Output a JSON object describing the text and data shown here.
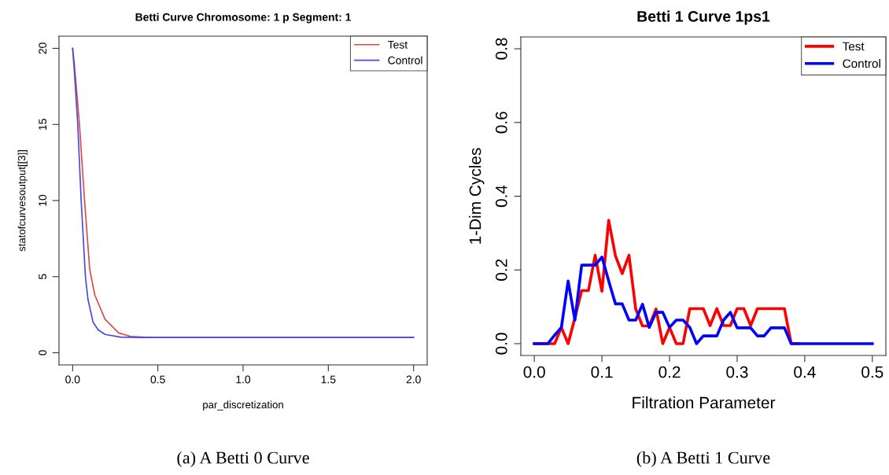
{
  "chart_data": [
    {
      "type": "line",
      "title": "Betti Curve Chromosome: 1 p Segment: 1",
      "xlabel": "par_discretization",
      "ylabel": "statofcurvesoutput[[3]]",
      "xlim": [
        -0.08,
        2.08
      ],
      "xticks": [
        {
          "value": 0,
          "label": "0.0"
        },
        0.5,
        {
          "value": 1,
          "label": "1.0"
        },
        1.5,
        {
          "value": 2,
          "label": "2.0"
        }
      ],
      "ylim": [
        -0.8,
        20.8
      ],
      "yticks": [
        0,
        5,
        10,
        15,
        20
      ],
      "grid": false,
      "legend": "top right",
      "annotations": [
        "(a) A Betti 0 Curve"
      ],
      "series": [
        {
          "name": "Test",
          "color": "#e04848",
          "x": [
            0,
            0.01,
            0.04,
            0.07,
            0.1,
            0.13,
            0.19,
            0.27,
            0.34,
            0.45,
            2
          ],
          "values": [
            20,
            19,
            15,
            10,
            5.5,
            3.8,
            2.2,
            1.3,
            1.07,
            1,
            1
          ]
        },
        {
          "name": "Control",
          "color": "#4848e0",
          "x": [
            0,
            0.01,
            0.03,
            0.05,
            0.075,
            0.09,
            0.12,
            0.15,
            0.19,
            0.28,
            0.4,
            2
          ],
          "values": [
            20,
            18.5,
            15,
            10,
            5,
            3.5,
            2,
            1.5,
            1.2,
            1.03,
            1,
            1
          ]
        }
      ]
    },
    {
      "type": "line",
      "title": "Betti 1 Curve 1ps1",
      "xlabel": "Filtration Parameter",
      "ylabel": "1-Dim Cycles",
      "xlim": [
        -0.02,
        0.52
      ],
      "xticks": [
        {
          "value": 0,
          "label": "0.0"
        },
        0.1,
        0.2,
        0.3,
        0.4,
        0.5
      ],
      "ylim": [
        -0.032,
        0.832
      ],
      "yticks": [
        {
          "value": 0,
          "label": "0.0"
        },
        0.2,
        0.4,
        0.6,
        0.8
      ],
      "grid": false,
      "legend": "top right",
      "annotations": [
        "(b) A Betti 1 Curve"
      ],
      "x": [
        0,
        0.01,
        0.02,
        0.03,
        0.04,
        0.05,
        0.06,
        0.07,
        0.08,
        0.09,
        0.1,
        0.11,
        0.12,
        0.13,
        0.14,
        0.15,
        0.16,
        0.17,
        0.18,
        0.19,
        0.2,
        0.21,
        0.22,
        0.23,
        0.24,
        0.25,
        0.26,
        0.27,
        0.28,
        0.29,
        0.3,
        0.31,
        0.32,
        0.33,
        0.34,
        0.35,
        0.36,
        0.37,
        0.38,
        0.39,
        0.4,
        0.41,
        0.42,
        0.43,
        0.44,
        0.45,
        0.46,
        0.47,
        0.48,
        0.49,
        0.5
      ],
      "series": [
        {
          "name": "Test",
          "color": "#ff0000",
          "values": [
            0,
            0,
            0,
            0,
            0.044,
            0,
            0.07,
            0.144,
            0.144,
            0.24,
            0.142,
            0.335,
            0.238,
            0.19,
            0.24,
            0.094,
            0.048,
            0.048,
            0.094,
            0,
            0.044,
            0,
            0,
            0.095,
            0.095,
            0.095,
            0.049,
            0.095,
            0.049,
            0.049,
            0.095,
            0.095,
            0.049,
            0.095,
            0.095,
            0.095,
            0.095,
            0.095,
            0,
            0,
            null,
            null,
            null,
            null,
            null,
            null,
            null,
            null,
            null,
            null,
            null
          ]
        },
        {
          "name": "Control",
          "color": "#0000ff",
          "values": [
            0,
            0,
            0,
            0.023,
            0.044,
            0.17,
            0.064,
            0.213,
            0.213,
            0.213,
            0.235,
            0.17,
            0.108,
            0.108,
            0.064,
            0.064,
            0.107,
            0.044,
            0.085,
            0.085,
            0.044,
            0.064,
            0.064,
            0.044,
            0,
            0.021,
            0.021,
            0.021,
            0.064,
            0.085,
            0.043,
            0.043,
            0.043,
            0.021,
            0.021,
            0.043,
            0.043,
            0.043,
            0,
            0,
            0,
            0,
            0,
            0,
            0,
            0,
            0,
            0,
            0,
            0,
            0
          ]
        }
      ]
    }
  ]
}
